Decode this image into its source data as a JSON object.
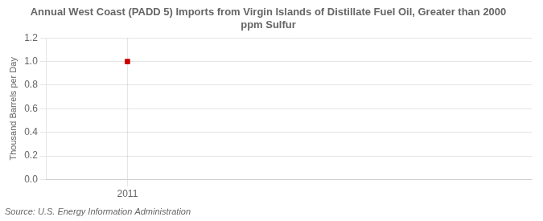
{
  "chart_data": {
    "type": "scatter",
    "title": "Annual West Coast (PADD 5) Imports from Virgin Islands of Distillate Fuel Oil, Greater than 2000\nppm Sulfur",
    "ylabel": "Thousand Barrels per Day",
    "source": "Source: U.S. Energy Information Administration",
    "x": [
      2011
    ],
    "values": [
      1.0
    ],
    "color": "#cc0000",
    "marker": "square",
    "xlim": [
      2010.6,
      2013.0
    ],
    "xticks": [
      2011
    ],
    "ylim": [
      0.0,
      1.2
    ],
    "yticks": [
      {
        "value": 0.0,
        "label": "0.0"
      },
      0.2,
      0.4,
      0.6,
      0.8,
      {
        "value": 1.0,
        "label": "1.0"
      },
      1.2
    ],
    "grid": true
  }
}
